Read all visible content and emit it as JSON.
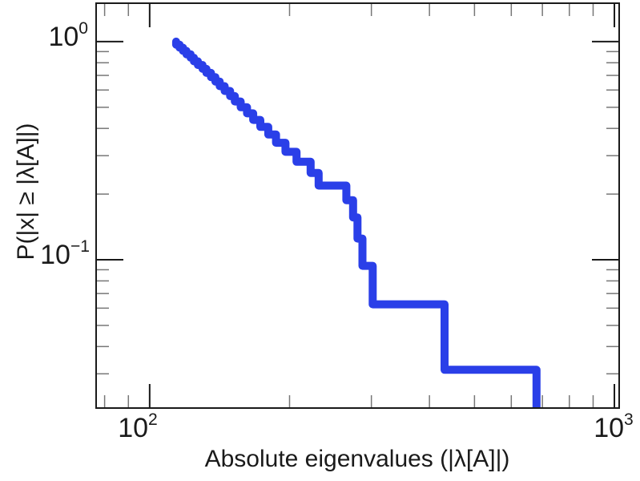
{
  "figure": {
    "background": "#ffffff",
    "frame_color": "#1a1a1a",
    "minor_tick_color": "#777777"
  },
  "chart_data": {
    "type": "line",
    "subtype": "empirical_ccdf_step_plot",
    "title": "",
    "xlabel": "Absolute eigenvalues (|λ[A]|)",
    "ylabel": "P(|x| ≥ |λ[A]|)",
    "xscale": "log",
    "yscale": "log",
    "grid": false,
    "legend": null,
    "xlim": [
      76.7,
      1024
    ],
    "ylim": [
      0.0209,
      1.5
    ],
    "n_points": 32,
    "eigenvalues_sorted": [
      114,
      116,
      118,
      120,
      122.5,
      124.5,
      127,
      130,
      132.5,
      135.5,
      138.5,
      141.5,
      145,
      149,
      152.5,
      157,
      162,
      167,
      173,
      180,
      187,
      196,
      207,
      222,
      231,
      265,
      274,
      280,
      287,
      302,
      431,
      680
    ],
    "ccdf_level_after_each_drop": [
      0.9688,
      0.9375,
      0.9063,
      0.875,
      0.8438,
      0.8125,
      0.7813,
      0.75,
      0.7188,
      0.6875,
      0.6563,
      0.625,
      0.5938,
      0.5625,
      0.5313,
      0.5,
      0.4688,
      0.4375,
      0.4063,
      0.375,
      0.3438,
      0.3125,
      0.2813,
      0.25,
      0.2188,
      0.1875,
      0.1563,
      0.125,
      0.0938,
      0.0625,
      0.0313,
      0
    ],
    "x_axis": {
      "major_ticks": [
        100,
        1000
      ],
      "minor_ticks": [
        80,
        90,
        200,
        300,
        400,
        500,
        600,
        700,
        800,
        900
      ],
      "tick_labels": [
        {
          "base": "10",
          "exp": "2",
          "value": 100
        },
        {
          "base": "10",
          "exp": "3",
          "value": 1000
        }
      ]
    },
    "y_axis": {
      "major_ticks": [
        1,
        0.1
      ],
      "minor_ticks": [
        0.9,
        0.8,
        0.7,
        0.6,
        0.5,
        0.4,
        0.3,
        0.2,
        0.09,
        0.08,
        0.07,
        0.06,
        0.05,
        0.04,
        0.03
      ],
      "tick_labels": [
        {
          "base": "10",
          "exp": "0",
          "value": 1
        },
        {
          "base": "10",
          "exp": "−1",
          "value": 0.1
        }
      ]
    },
    "line": {
      "color": "#2a3fe8",
      "width": 10
    }
  }
}
